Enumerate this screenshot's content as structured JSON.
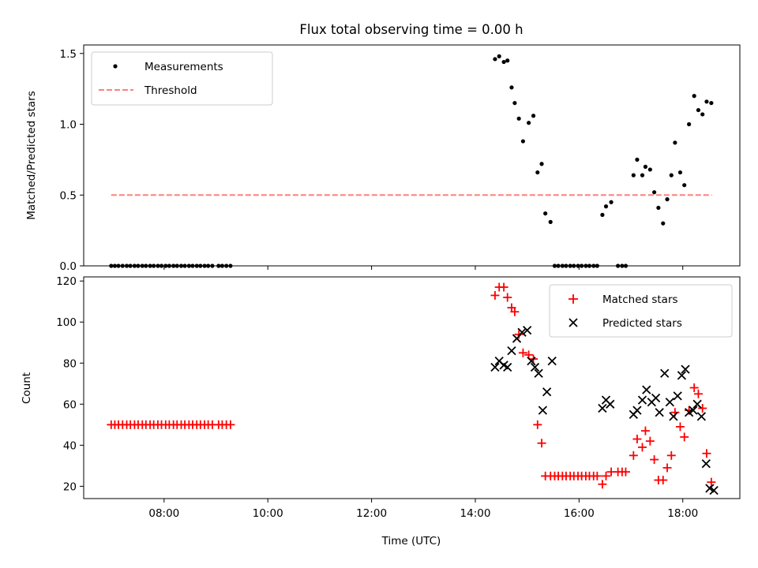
{
  "chart_data": [
    {
      "type": "scatter",
      "title": "Flux total observing time = 0.00 h",
      "ylabel": "Matched/Predicted stars",
      "xlabel": "",
      "xlim": [
        6.45,
        19.1
      ],
      "ylim": [
        0,
        1.56
      ],
      "y_ticks": [
        0.0,
        0.5,
        1.0,
        1.5
      ],
      "y_tick_labels": [
        "0.0",
        "0.5",
        "1.0",
        "1.5"
      ],
      "x_ticks": [
        8,
        10,
        12,
        14,
        16,
        18
      ],
      "grid": false,
      "legend_position": "top-left",
      "series": [
        {
          "name": "Measurements",
          "marker": "dot",
          "color": "#000000",
          "x": [
            6.98,
            7.05,
            7.12,
            7.2,
            7.28,
            7.35,
            7.43,
            7.5,
            7.58,
            7.65,
            7.73,
            7.8,
            7.88,
            7.95,
            8.03,
            8.1,
            8.18,
            8.25,
            8.33,
            8.4,
            8.48,
            8.55,
            8.63,
            8.7,
            8.78,
            8.85,
            8.93,
            9.05,
            9.12,
            9.2,
            9.28,
            14.38,
            14.46,
            14.55,
            14.62,
            14.7,
            14.76,
            14.84,
            14.92,
            15.03,
            15.12,
            15.2,
            15.28,
            15.35,
            15.45,
            15.53,
            15.6,
            15.68,
            15.75,
            15.83,
            15.9,
            15.98,
            16.05,
            16.13,
            16.2,
            16.28,
            16.35,
            16.45,
            16.52,
            16.62,
            16.75,
            16.83,
            16.9,
            17.05,
            17.12,
            17.22,
            17.28,
            17.37,
            17.45,
            17.53,
            17.62,
            17.7,
            17.78,
            17.85,
            17.95,
            18.03,
            18.12,
            18.22,
            18.3,
            18.38,
            18.46,
            18.55
          ],
          "y": [
            0,
            0,
            0,
            0,
            0,
            0,
            0,
            0,
            0,
            0,
            0,
            0,
            0,
            0,
            0,
            0,
            0,
            0,
            0,
            0,
            0,
            0,
            0,
            0,
            0,
            0,
            0,
            0,
            0,
            0,
            0,
            1.46,
            1.48,
            1.44,
            1.45,
            1.26,
            1.15,
            1.04,
            0.88,
            1.01,
            1.06,
            0.66,
            0.72,
            0.37,
            0.31,
            0,
            0,
            0,
            0,
            0,
            0,
            0,
            0,
            0,
            0,
            0,
            0,
            0.36,
            0.42,
            0.45,
            0,
            0,
            0,
            0.64,
            0.75,
            0.64,
            0.7,
            0.68,
            0.52,
            0.41,
            0.3,
            0.47,
            0.64,
            0.87,
            0.66,
            0.57,
            1.0,
            1.2,
            1.1,
            1.07,
            1.16,
            1.15
          ]
        },
        {
          "name": "Threshold",
          "marker": "dashed-line",
          "color": "#ff7f7f",
          "x": [
            6.98,
            18.56
          ],
          "y": [
            0.5,
            0.5
          ]
        }
      ]
    },
    {
      "type": "scatter",
      "title": "",
      "ylabel": "Count",
      "xlabel": "Time (UTC)",
      "xlim": [
        6.45,
        19.1
      ],
      "ylim": [
        14,
        122
      ],
      "y_ticks": [
        20,
        40,
        60,
        80,
        100,
        120
      ],
      "y_tick_labels": [
        "20",
        "40",
        "60",
        "80",
        "100",
        "120"
      ],
      "x_ticks": [
        8,
        10,
        12,
        14,
        16,
        18
      ],
      "x_tick_labels": [
        "08:00",
        "10:00",
        "12:00",
        "14:00",
        "16:00",
        "18:00"
      ],
      "grid": false,
      "legend_position": "top-right",
      "series": [
        {
          "name": "Matched stars",
          "marker": "plus",
          "color": "#ff0000",
          "x": [
            6.98,
            7.05,
            7.12,
            7.2,
            7.28,
            7.35,
            7.43,
            7.5,
            7.58,
            7.65,
            7.73,
            7.8,
            7.88,
            7.95,
            8.03,
            8.1,
            8.18,
            8.25,
            8.33,
            8.4,
            8.48,
            8.55,
            8.63,
            8.7,
            8.78,
            8.85,
            8.93,
            9.05,
            9.12,
            9.2,
            9.28,
            14.38,
            14.46,
            14.55,
            14.62,
            14.7,
            14.76,
            14.84,
            14.92,
            15.03,
            15.12,
            15.2,
            15.28,
            15.35,
            15.45,
            15.53,
            15.6,
            15.68,
            15.75,
            15.83,
            15.9,
            15.98,
            16.05,
            16.13,
            16.2,
            16.28,
            16.35,
            16.45,
            16.52,
            16.62,
            16.75,
            16.83,
            16.9,
            17.05,
            17.12,
            17.22,
            17.28,
            17.37,
            17.45,
            17.53,
            17.62,
            17.7,
            17.78,
            17.85,
            17.95,
            18.03,
            18.12,
            18.22,
            18.3,
            18.38,
            18.46,
            18.55
          ],
          "y": [
            50,
            50,
            50,
            50,
            50,
            50,
            50,
            50,
            50,
            50,
            50,
            50,
            50,
            50,
            50,
            50,
            50,
            50,
            50,
            50,
            50,
            50,
            50,
            50,
            50,
            50,
            50,
            50,
            50,
            50,
            50,
            113,
            117,
            117,
            112,
            107,
            105,
            94,
            85,
            84,
            82,
            50,
            41,
            25,
            25,
            25,
            25,
            25,
            25,
            25,
            25,
            25,
            25,
            25,
            25,
            25,
            25,
            21,
            25,
            27,
            27,
            27,
            27,
            35,
            43,
            39,
            47,
            42,
            33,
            23,
            23,
            29,
            35,
            56,
            49,
            44,
            57,
            68,
            65,
            58,
            36,
            22
          ]
        },
        {
          "name": "Predicted stars",
          "marker": "x",
          "color": "#000000",
          "x": [
            14.38,
            14.46,
            14.55,
            14.62,
            14.7,
            14.8,
            14.9,
            15.0,
            15.08,
            15.15,
            15.22,
            15.3,
            15.38,
            15.48,
            16.45,
            16.52,
            16.6,
            17.05,
            17.12,
            17.22,
            17.3,
            17.4,
            17.48,
            17.55,
            17.65,
            17.75,
            17.82,
            17.9,
            17.98,
            18.05,
            18.12,
            18.2,
            18.28,
            18.36,
            18.45,
            18.52,
            18.6
          ],
          "y": [
            78,
            81,
            79,
            78,
            86,
            92,
            95,
            96,
            81,
            78,
            75,
            57,
            66,
            81,
            58,
            62,
            60,
            55,
            57,
            62,
            67,
            61,
            63,
            56,
            75,
            61,
            54,
            64,
            74,
            77,
            56,
            57,
            60,
            54,
            31,
            19,
            18
          ]
        }
      ]
    }
  ]
}
